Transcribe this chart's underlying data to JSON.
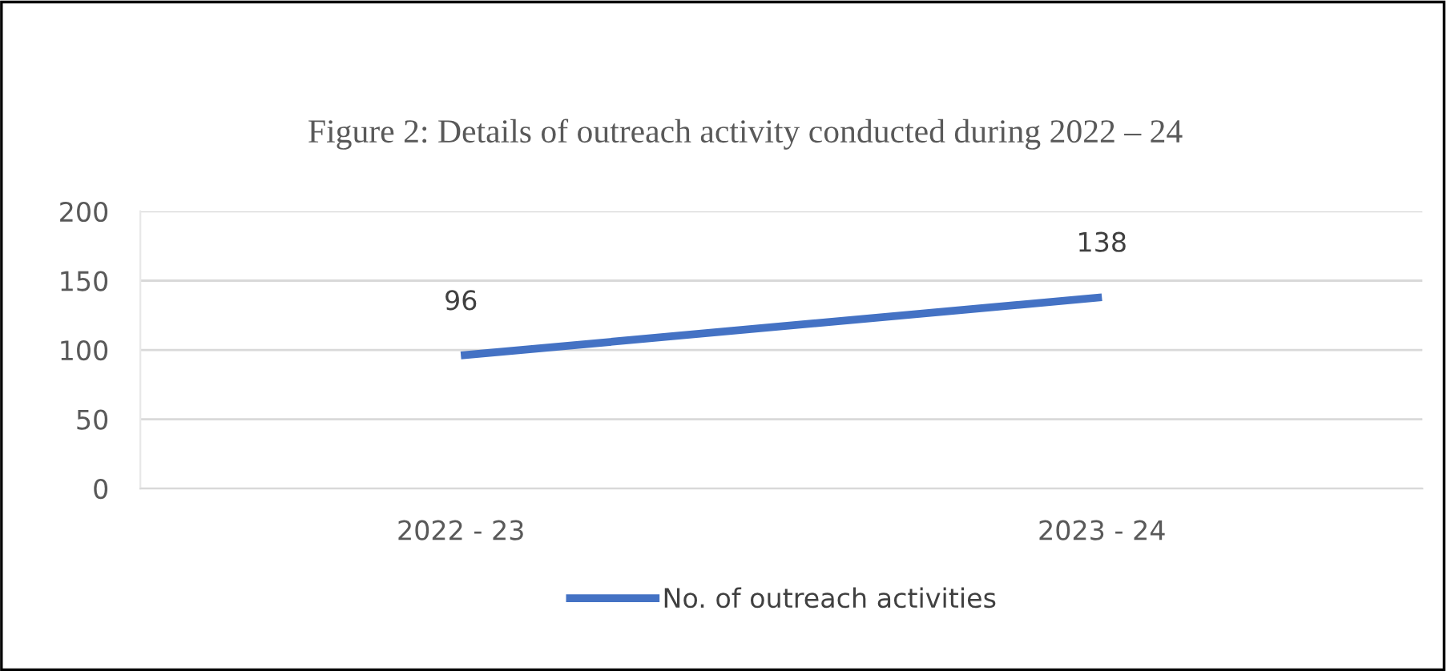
{
  "chart_data": {
    "type": "line",
    "title": "Figure 2: Details of outreach activity conducted during 2022 – 24",
    "categories": [
      "2022 - 23",
      "2023 - 24"
    ],
    "series": [
      {
        "name": "No. of outreach activities",
        "color": "#4472c4",
        "values": [
          96,
          138
        ]
      }
    ],
    "ylim": [
      0,
      200
    ],
    "yticks": [
      0,
      50,
      100,
      150,
      200
    ],
    "grid": "y",
    "legend": "bottom",
    "data_labels": true,
    "marker": "none",
    "line_style": "solid"
  }
}
